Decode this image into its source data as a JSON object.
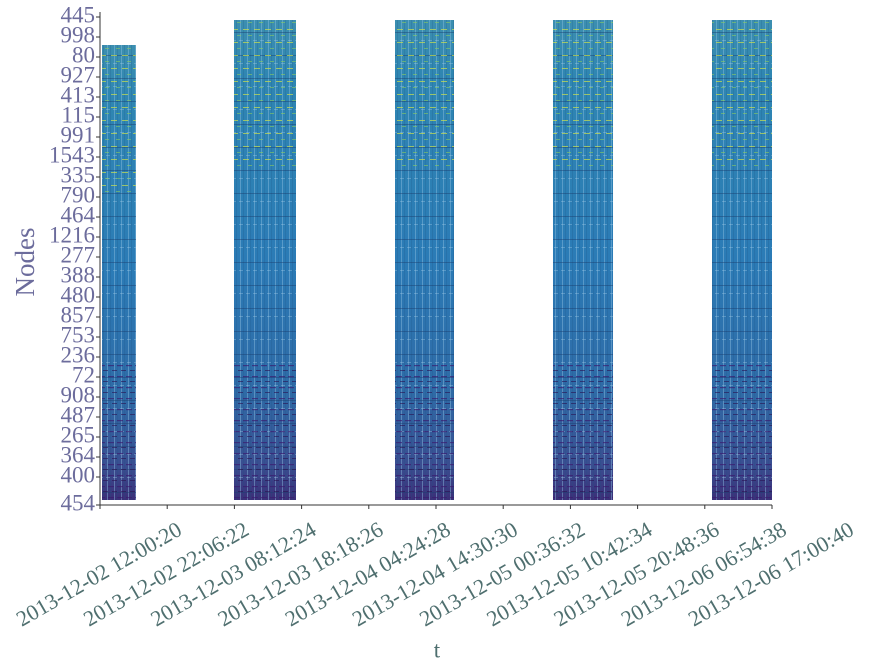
{
  "chart_data": {
    "type": "timeline",
    "ylabel": "Nodes",
    "xlabel": "t",
    "y_categories": [
      "445",
      "998",
      "80",
      "927",
      "413",
      "115",
      "991",
      "1543",
      "335",
      "790",
      "464",
      "1216",
      "277",
      "388",
      "480",
      "857",
      "753",
      "236",
      "72",
      "908",
      "487",
      "265",
      "364",
      "400",
      "454"
    ],
    "xlim": [
      "2013-12-02T12:00:20",
      "2013-12-06T17:00:40"
    ],
    "xticks": [
      {
        "value": "2013-12-02T12:00:20",
        "label": "2013-12-02 12:00:20"
      },
      {
        "value": "2013-12-02T22:06:22",
        "label": "2013-12-02 22:06:22"
      },
      {
        "value": "2013-12-03T08:12:24",
        "label": "2013-12-03 08:12:24"
      },
      {
        "value": "2013-12-03T18:18:26",
        "label": "2013-12-03 18:18:26"
      },
      {
        "value": "2013-12-04T04:24:28",
        "label": "2013-12-04 04:24:28"
      },
      {
        "value": "2013-12-04T14:30:30",
        "label": "2013-12-04 14:30:30"
      },
      {
        "value": "2013-12-05T00:36:32",
        "label": "2013-12-05 00:36:32"
      },
      {
        "value": "2013-12-05T10:42:34",
        "label": "2013-12-05 10:42:34"
      },
      {
        "value": "2013-12-05T20:48:36",
        "label": "2013-12-05 20:48:36"
      },
      {
        "value": "2013-12-06T06:54:38",
        "label": "2013-12-06 06:54:38"
      },
      {
        "value": "2013-12-06T17:00:40",
        "label": "2013-12-06 17:00:40"
      }
    ],
    "intervals": [
      {
        "start": "2013-12-02T12:18:22",
        "end": "2013-12-02T17:25:00"
      },
      {
        "start": "2013-12-03T08:08:48",
        "end": "2013-12-03T17:27:53"
      },
      {
        "start": "2013-12-04T08:20:45",
        "end": "2013-12-04T17:12:50"
      },
      {
        "start": "2013-12-05T08:05:38",
        "end": "2013-12-05T17:06:50"
      },
      {
        "start": "2013-12-06T07:59:38",
        "end": "2013-12-06T17:00:40"
      }
    ],
    "color": "#2b7bb6"
  }
}
